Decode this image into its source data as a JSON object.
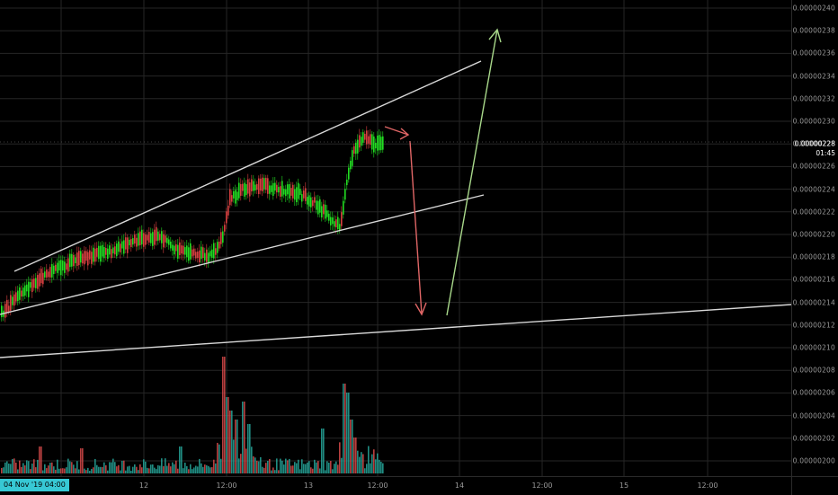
{
  "chart_data": {
    "type": "candlestick",
    "price_axis": {
      "labels": [
        "0.00000240",
        "0.00000238",
        "0.00000236",
        "0.00000234",
        "0.00000232",
        "0.00000230",
        "0.00000228",
        "0.00000226",
        "0.00000224",
        "0.00000222",
        "0.00000220",
        "0.00000218",
        "0.00000216",
        "0.00000214",
        "0.00000212",
        "0.00000210",
        "0.00000208",
        "0.00000206",
        "0.00000204",
        "0.00000202",
        "0.00000200"
      ],
      "ylim": [
        1.99e-06,
        2.41e-06
      ]
    },
    "current_price": "0.00000228",
    "countdown": "01:45",
    "time_axis": {
      "labels": [
        "12",
        "12:00",
        "13",
        "12:00",
        "14",
        "12:00",
        "15",
        "12:00"
      ]
    },
    "crosshair_date": "04 Nov '19   04:00",
    "colors": {
      "up": "#22dd22",
      "down": "#d84040",
      "volume_up": "#26a69a",
      "volume_down": "#d84a4a",
      "trendline": "#d8d8d8",
      "arrow_down": "#e06666",
      "arrow_up": "#a8d88a",
      "grid": "#262626"
    }
  }
}
